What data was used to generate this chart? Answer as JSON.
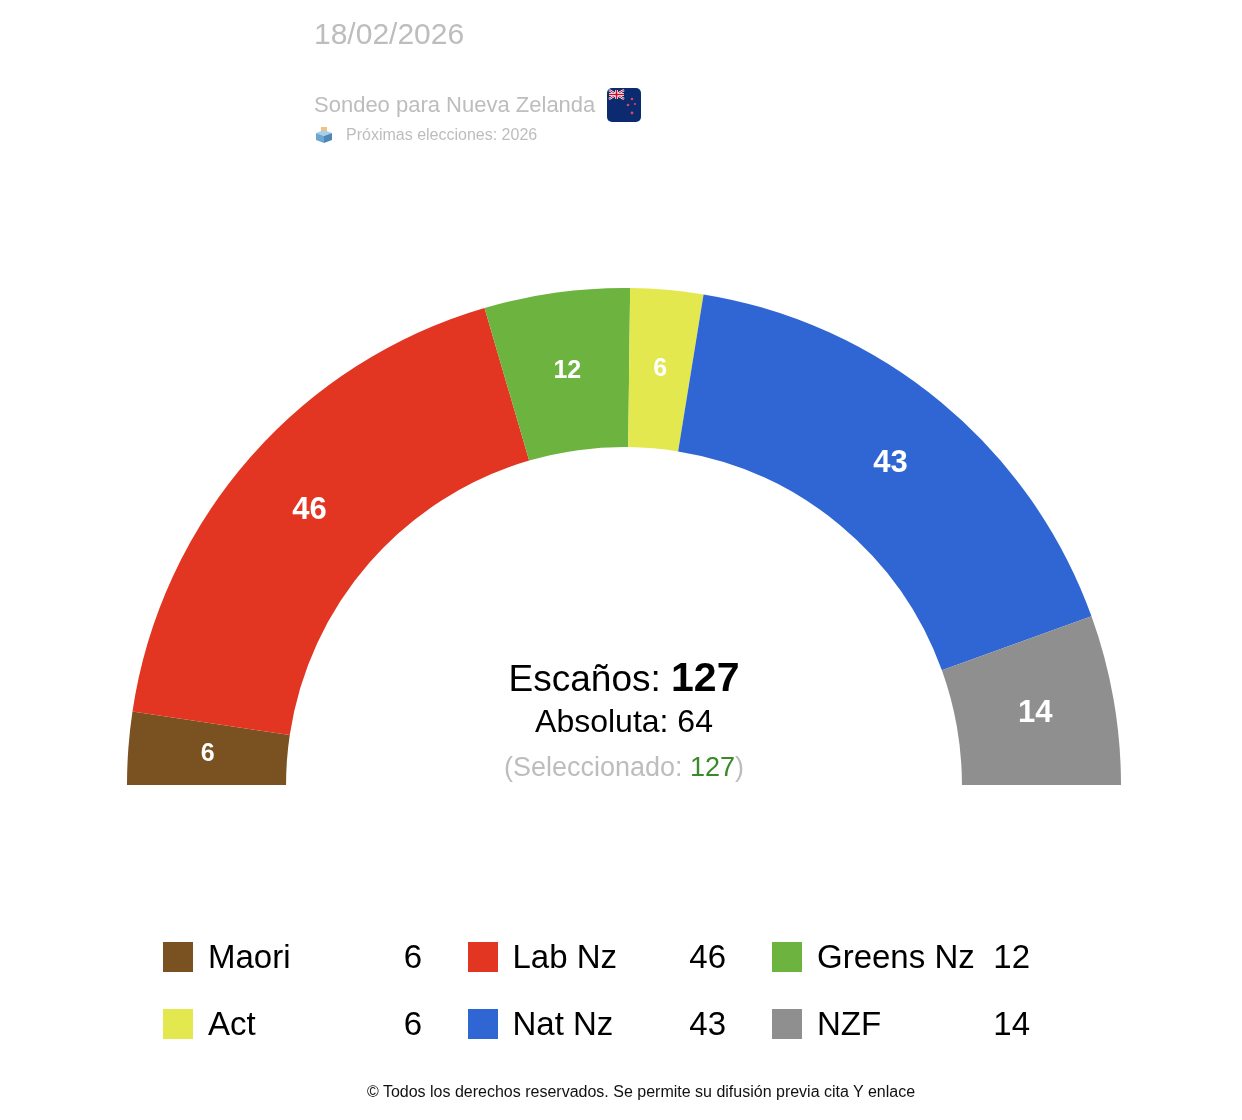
{
  "chart_data": {
    "type": "donut",
    "title": "18/02/2026",
    "subtitle": "Sondeo para Nueva Zelanda",
    "categories": [
      "Maori",
      "Lab Nz",
      "Greens Nz",
      "Act",
      "Nat Nz",
      "NZF"
    ],
    "values": [
      6,
      46,
      12,
      6,
      43,
      14
    ],
    "value_labels": [
      "6",
      "46",
      "12",
      "6",
      "43",
      "14"
    ],
    "colors": [
      "#7a5120",
      "#e23522",
      "#6db33f",
      "#e2e84e",
      "#3066d3",
      "#8f8f8f"
    ],
    "legend": "bottom",
    "annotations": [
      "Escaños: 127",
      "Absoluta: 64",
      "(Seleccionado: 127)",
      "Próximas elecciones: 2026",
      "© Todos los derechos reservados. Se permite su difusión previa cita Y enlace"
    ]
  }
}
